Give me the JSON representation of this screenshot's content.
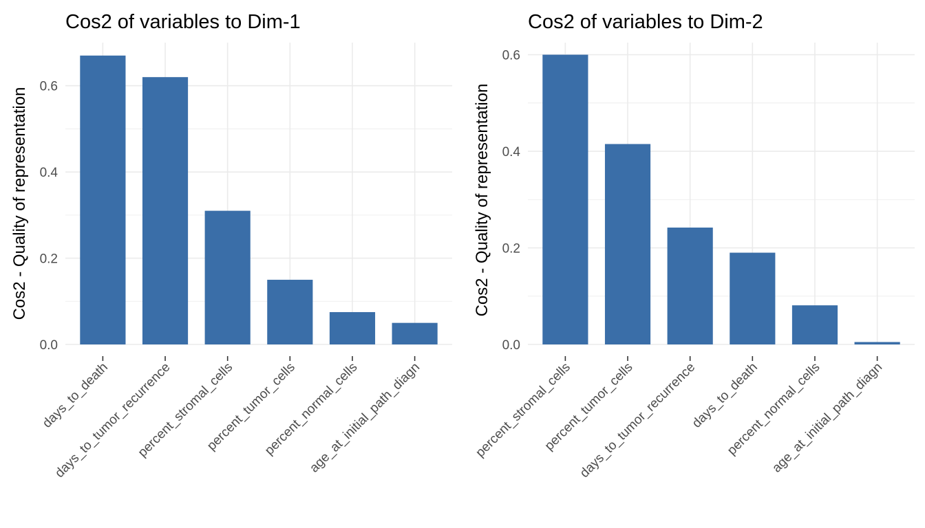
{
  "chart_data": [
    {
      "type": "bar",
      "title": "Cos2 of variables to Dim-1",
      "xlabel": "",
      "ylabel": "Cos2 - Quality of representation",
      "categories": [
        "days_to_death",
        "days_to_tumor_recurrence",
        "percent_stromal_cells",
        "percent_tumor_cells",
        "percent_normal_cells",
        "age_at_initial_path_diagn"
      ],
      "values": [
        0.67,
        0.62,
        0.31,
        0.15,
        0.075,
        0.05
      ],
      "ylim": [
        0,
        0.7
      ],
      "yticks": [
        "0.0",
        "0.2",
        "0.4",
        "0.6"
      ],
      "grid": true,
      "bar_color": "#3a6ea8"
    },
    {
      "type": "bar",
      "title": "Cos2 of variables to Dim-2",
      "xlabel": "",
      "ylabel": "Cos2 - Quality of representation",
      "categories": [
        "percent_stromal_cells",
        "percent_tumor_cells",
        "days_to_tumor_recurrence",
        "days_to_death",
        "percent_normal_cells",
        "age_at_initial_path_diagn"
      ],
      "values": [
        0.6,
        0.415,
        0.242,
        0.19,
        0.081,
        0.005
      ],
      "ylim": [
        0,
        0.625
      ],
      "yticks": [
        "0.0",
        "0.2",
        "0.4",
        "0.6"
      ],
      "grid": true,
      "bar_color": "#3a6ea8"
    }
  ]
}
